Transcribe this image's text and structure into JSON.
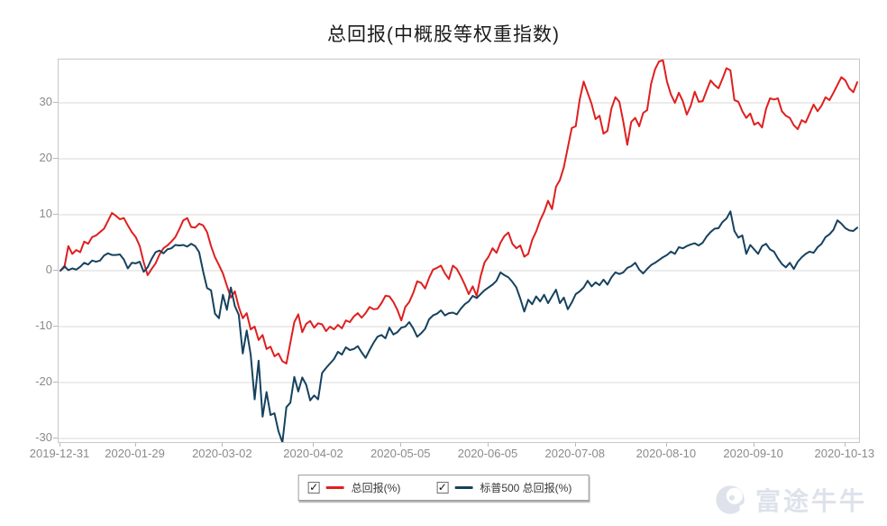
{
  "title": "总回报(中概股等权重指数)",
  "colors": {
    "series1": "#df1f1f",
    "series2": "#16425f",
    "grid": "#d9d9d9",
    "plot_border": "#c6c6c6",
    "tick_label": "#8a8a8a",
    "title_text": "#1a1a1a",
    "watermark": "#dde2eb"
  },
  "legend": {
    "items": [
      {
        "label": "总回报(%)",
        "checked": true,
        "color": "#df1f1f"
      },
      {
        "label": "标普500 总回报(%)",
        "checked": true,
        "color": "#16425f"
      }
    ],
    "checkmark": "✓"
  },
  "watermark": {
    "text": "富途牛牛",
    "logo": "futu-bull-logo"
  },
  "chart_data": {
    "type": "line",
    "title": "总回报(中概股等权重指数)",
    "xlabel": "",
    "ylabel": "",
    "grid": "horizontal",
    "legend_position": "bottom",
    "ylim": [
      -31,
      37.9
    ],
    "y_ticks": [
      30,
      20,
      10,
      0,
      -10,
      -20,
      -30
    ],
    "x_tick_labels": [
      "2019-12-31",
      "2020-01-29",
      "2020-03-02",
      "2020-04-02",
      "2020-05-05",
      "2020-06-05",
      "2020-07-08",
      "2020-08-10",
      "2020-09-10",
      "2020-10-13"
    ],
    "x_tick_positions": [
      0,
      19,
      41,
      64,
      86,
      108,
      130,
      153,
      175,
      198
    ],
    "n_points": 202,
    "series": [
      {
        "name": "总回报(%)",
        "color": "#df1f1f",
        "values": [
          0.0,
          0.6,
          4.4,
          3.0,
          3.7,
          3.3,
          5.2,
          4.8,
          6.0,
          6.3,
          6.9,
          7.5,
          8.9,
          10.3,
          9.8,
          9.2,
          9.4,
          8.1,
          6.9,
          6.0,
          4.4,
          1.5,
          -0.8,
          0.3,
          1.3,
          2.9,
          4.0,
          4.5,
          5.2,
          6.0,
          7.4,
          9.0,
          9.4,
          7.8,
          7.7,
          8.4,
          8.1,
          6.9,
          4.4,
          2.4,
          1.0,
          -0.5,
          -2.7,
          -4.8,
          -3.7,
          -6.5,
          -8.5,
          -7.6,
          -10.5,
          -10.0,
          -12.4,
          -11.5,
          -14.0,
          -13.6,
          -15.3,
          -14.8,
          -16.2,
          -16.6,
          -12.9,
          -9.2,
          -7.8,
          -11.0,
          -9.5,
          -9.0,
          -10.2,
          -9.4,
          -9.6,
          -10.8,
          -10.0,
          -10.5,
          -9.7,
          -10.3,
          -8.9,
          -9.2,
          -8.2,
          -7.6,
          -8.4,
          -7.6,
          -6.5,
          -6.9,
          -6.8,
          -5.8,
          -4.5,
          -4.6,
          -5.6,
          -7.0,
          -8.9,
          -6.5,
          -5.6,
          -4.0,
          -1.9,
          -2.2,
          -3.2,
          -1.3,
          0.2,
          0.5,
          0.9,
          -0.5,
          -1.5,
          0.9,
          0.3,
          -1.0,
          -2.5,
          -4.2,
          -2.8,
          -4.5,
          -1.0,
          1.5,
          2.5,
          4.0,
          3.2,
          5.0,
          6.2,
          6.8,
          4.8,
          4.0,
          4.5,
          2.5,
          3.0,
          5.5,
          7.0,
          9.0,
          10.5,
          12.5,
          11.0,
          15.0,
          16.2,
          18.5,
          22.0,
          25.5,
          25.8,
          30.6,
          33.8,
          31.8,
          29.8,
          27.1,
          27.7,
          24.5,
          25.0,
          29.0,
          31.0,
          30.2,
          26.6,
          22.5,
          26.6,
          27.3,
          25.8,
          28.2,
          28.7,
          33.4,
          36.0,
          37.4,
          37.6,
          33.8,
          31.5,
          30.0,
          31.8,
          30.3,
          27.9,
          29.5,
          32.0,
          30.2,
          30.3,
          32.2,
          34.0,
          33.2,
          32.6,
          34.3,
          36.2,
          35.8,
          30.5,
          30.2,
          28.5,
          27.3,
          28.1,
          26.1,
          26.5,
          25.6,
          28.9,
          30.8,
          30.6,
          30.8,
          28.5,
          27.7,
          27.3,
          26.0,
          25.3,
          26.9,
          26.5,
          28.1,
          29.7,
          28.5,
          29.5,
          31.0,
          30.5,
          31.8,
          33.2,
          34.6,
          34.0,
          32.6,
          31.9,
          33.7
        ]
      },
      {
        "name": "标普500 总回报(%)",
        "color": "#16425f",
        "values": [
          0.0,
          0.8,
          0.1,
          0.4,
          0.2,
          0.7,
          1.4,
          1.1,
          1.8,
          1.6,
          1.8,
          2.7,
          3.1,
          2.8,
          2.8,
          2.9,
          2.0,
          0.4,
          1.4,
          1.3,
          1.6,
          -0.2,
          0.6,
          2.1,
          3.3,
          3.6,
          3.1,
          3.8,
          4.0,
          4.6,
          4.5,
          4.6,
          4.3,
          4.8,
          4.4,
          3.3,
          -0.1,
          -3.1,
          -3.5,
          -7.7,
          -8.5,
          -4.3,
          -7.0,
          -3.0,
          -6.3,
          -7.9,
          -14.8,
          -10.7,
          -15.0,
          -23.0,
          -16.1,
          -26.1,
          -21.7,
          -25.8,
          -25.5,
          -28.7,
          -30.7,
          -24.4,
          -23.6,
          -19.0,
          -21.6,
          -19.1,
          -20.4,
          -23.2,
          -22.3,
          -23.0,
          -18.3,
          -17.4,
          -16.6,
          -15.8,
          -14.5,
          -15.0,
          -13.7,
          -14.2,
          -14.0,
          -13.5,
          -14.6,
          -15.6,
          -14.2,
          -12.9,
          -11.8,
          -11.5,
          -12.1,
          -10.2,
          -11.4,
          -11.0,
          -10.2,
          -10.0,
          -9.2,
          -10.3,
          -11.8,
          -11.2,
          -10.4,
          -8.7,
          -8.0,
          -7.7,
          -7.1,
          -8.0,
          -7.6,
          -7.5,
          -7.8,
          -6.8,
          -6.0,
          -5.5,
          -4.5,
          -4.9,
          -4.2,
          -3.5,
          -3.0,
          -2.5,
          -1.8,
          -0.3,
          -0.8,
          -1.2,
          -2.0,
          -3.0,
          -5.0,
          -7.3,
          -5.2,
          -6.0,
          -4.6,
          -5.5,
          -4.3,
          -5.8,
          -4.6,
          -3.4,
          -5.8,
          -4.8,
          -6.9,
          -5.7,
          -4.2,
          -3.7,
          -3.0,
          -1.8,
          -2.8,
          -2.1,
          -2.6,
          -1.6,
          -2.5,
          -1.2,
          -0.3,
          -0.6,
          -0.3,
          0.5,
          0.8,
          1.4,
          0.2,
          -0.5,
          0.3,
          1.0,
          1.4,
          1.9,
          2.4,
          2.8,
          3.4,
          3.0,
          4.2,
          4.0,
          4.4,
          4.7,
          4.9,
          4.5,
          5.0,
          6.1,
          6.9,
          7.5,
          7.6,
          8.7,
          9.3,
          10.6,
          7.1,
          5.9,
          6.3,
          3.0,
          4.6,
          3.8,
          3.0,
          4.4,
          4.8,
          3.8,
          3.4,
          2.2,
          1.2,
          0.6,
          1.4,
          0.3,
          1.6,
          2.4,
          3.0,
          3.4,
          3.2,
          4.2,
          4.8,
          6.0,
          6.5,
          7.3,
          9.0,
          8.4,
          7.6,
          7.2,
          7.1,
          7.7
        ]
      }
    ]
  }
}
